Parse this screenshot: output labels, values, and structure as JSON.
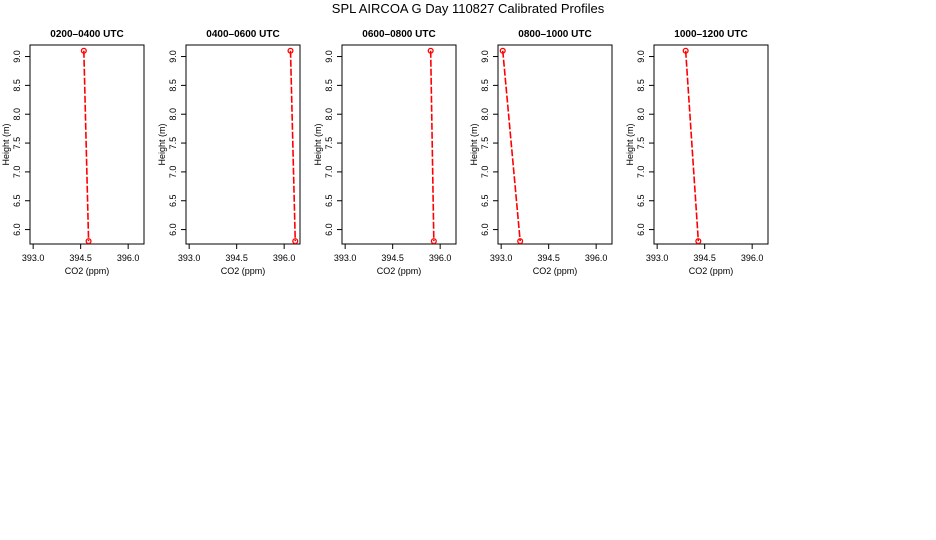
{
  "figure": {
    "title": "SPL AIRCOA G  Day 110827  Calibrated Profiles"
  },
  "style": {
    "series_color": "#ff0000",
    "axis_color": "#000000",
    "background": "#ffffff"
  },
  "chart_data": [
    {
      "type": "line",
      "title": "0200–0400 UTC",
      "xlabel": "CO2 (ppm)",
      "ylabel": "Height (m)",
      "xlim": [
        392.9,
        396.5
      ],
      "ylim": [
        5.75,
        9.2
      ],
      "xticks": [
        "393.0",
        "394.5",
        "396.0"
      ],
      "xtick_values": [
        393.0,
        394.5,
        396.0
      ],
      "yticks": [
        "6.0",
        "6.5",
        "7.0",
        "7.5",
        "8.0",
        "8.5",
        "9.0"
      ],
      "ytick_values": [
        6.0,
        6.5,
        7.0,
        7.5,
        8.0,
        8.5,
        9.0
      ],
      "grid": false,
      "series": [
        {
          "x": [
            394.6,
            394.75
          ],
          "y": [
            9.1,
            5.8
          ]
        }
      ]
    },
    {
      "type": "line",
      "title": "0400–0600 UTC",
      "xlabel": "CO2 (ppm)",
      "ylabel": "Height (m)",
      "xlim": [
        392.9,
        396.5
      ],
      "ylim": [
        5.75,
        9.2
      ],
      "xticks": [
        "393.0",
        "394.5",
        "396.0"
      ],
      "xtick_values": [
        393.0,
        394.5,
        396.0
      ],
      "yticks": [
        "6.0",
        "6.5",
        "7.0",
        "7.5",
        "8.0",
        "8.5",
        "9.0"
      ],
      "ytick_values": [
        6.0,
        6.5,
        7.0,
        7.5,
        8.0,
        8.5,
        9.0
      ],
      "grid": false,
      "series": [
        {
          "x": [
            396.2,
            396.35
          ],
          "y": [
            9.1,
            5.8
          ]
        }
      ]
    },
    {
      "type": "line",
      "title": "0600–0800 UTC",
      "xlabel": "CO2 (ppm)",
      "ylabel": "Height (m)",
      "xlim": [
        392.9,
        396.5
      ],
      "ylim": [
        5.75,
        9.2
      ],
      "xticks": [
        "393.0",
        "394.5",
        "396.0"
      ],
      "xtick_values": [
        393.0,
        394.5,
        396.0
      ],
      "yticks": [
        "6.0",
        "6.5",
        "7.0",
        "7.5",
        "8.0",
        "8.5",
        "9.0"
      ],
      "ytick_values": [
        6.0,
        6.5,
        7.0,
        7.5,
        8.0,
        8.5,
        9.0
      ],
      "grid": false,
      "series": [
        {
          "x": [
            395.7,
            395.8
          ],
          "y": [
            9.1,
            5.8
          ]
        }
      ]
    },
    {
      "type": "line",
      "title": "0800–1000 UTC",
      "xlabel": "CO2 (ppm)",
      "ylabel": "Height (m)",
      "xlim": [
        392.9,
        396.5
      ],
      "ylim": [
        5.75,
        9.2
      ],
      "xticks": [
        "393.0",
        "394.5",
        "396.0"
      ],
      "xtick_values": [
        393.0,
        394.5,
        396.0
      ],
      "yticks": [
        "6.0",
        "6.5",
        "7.0",
        "7.5",
        "8.0",
        "8.5",
        "9.0"
      ],
      "ytick_values": [
        6.0,
        6.5,
        7.0,
        7.5,
        8.0,
        8.5,
        9.0
      ],
      "grid": false,
      "series": [
        {
          "x": [
            393.05,
            393.6
          ],
          "y": [
            9.1,
            5.8
          ]
        }
      ]
    },
    {
      "type": "line",
      "title": "1000–1200 UTC",
      "xlabel": "CO2 (ppm)",
      "ylabel": "Height (m)",
      "xlim": [
        392.9,
        396.5
      ],
      "ylim": [
        5.75,
        9.2
      ],
      "xticks": [
        "393.0",
        "394.5",
        "396.0"
      ],
      "xtick_values": [
        393.0,
        394.5,
        396.0
      ],
      "yticks": [
        "6.0",
        "6.5",
        "7.0",
        "7.5",
        "8.0",
        "8.5",
        "9.0"
      ],
      "ytick_values": [
        6.0,
        6.5,
        7.0,
        7.5,
        8.0,
        8.5,
        9.0
      ],
      "grid": false,
      "series": [
        {
          "x": [
            393.9,
            394.3
          ],
          "y": [
            9.1,
            5.8
          ]
        }
      ]
    }
  ]
}
